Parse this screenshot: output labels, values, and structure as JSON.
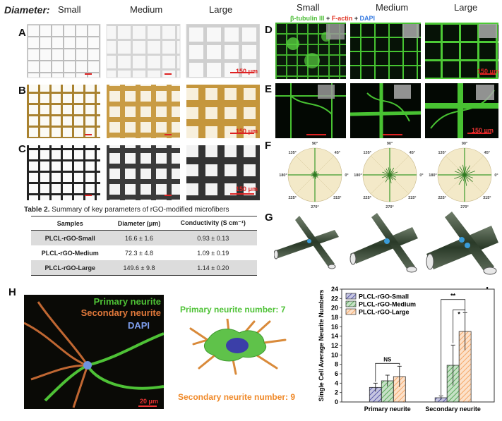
{
  "header_left": {
    "diameter_label": "Diameter:",
    "small": "Small",
    "medium": "Medium",
    "large": "Large"
  },
  "header_right": {
    "small": "Small",
    "medium": "Medium",
    "large": "Large",
    "stain_beta": "β-tubulin III",
    "plus1": " + ",
    "stain_factin": "F-actin",
    "plus2": " + ",
    "stain_dapi": "DAPI"
  },
  "panel_labels": {
    "A": "A",
    "B": "B",
    "C": "C",
    "D": "D",
    "E": "E",
    "F": "F",
    "G": "G",
    "H": "H",
    "I": "I"
  },
  "scale_bars": {
    "A": "150 μm",
    "B": "150 μm",
    "C": "150 μm",
    "D": "150 μm",
    "E": "150 μm",
    "H": "20 μm"
  },
  "table2": {
    "caption_bold": "Table 2.",
    "caption_rest": " Summary of key parameters of rGO-modified microfibers",
    "headers": [
      "Samples",
      "Diameter (μm)",
      "Conductivity (S cm⁻¹)"
    ],
    "rows": [
      [
        "PLCL-rGO-Small",
        "16.6 ± 1.6",
        "0.93 ± 0.13"
      ],
      [
        "PLCL-rGO-Medium",
        "72.3 ± 4.8",
        "1.09 ± 0.19"
      ],
      [
        "PLCL-rGO-Large",
        "149.6 ± 9.8",
        "1.14 ± 0.20"
      ]
    ]
  },
  "polar": {
    "angles": [
      "90°",
      "45°",
      "0°",
      "315°",
      "270°",
      "225°",
      "180°",
      "135°"
    ]
  },
  "panel_h": {
    "micro_primary": "Primary neurite",
    "micro_secondary": "Secondary neurite",
    "micro_dapi": "DAPI",
    "primary_number": "Primary neurite number: 7",
    "secondary_number": "Secondary neurite number: 9"
  },
  "chart_data": {
    "type": "bar",
    "categories": [
      "Primary neurite",
      "Secondary neurite"
    ],
    "ylabel": "Single Cell Average Neurite Numbers",
    "ylim": [
      0,
      24
    ],
    "yticks": [
      0,
      2,
      4,
      6,
      8,
      10,
      12,
      14,
      16,
      18,
      20,
      22,
      24
    ],
    "series": [
      {
        "name": "PLCL-rGO-Small",
        "values": [
          3.1,
          0.9
        ],
        "errors": [
          0.9,
          0.4
        ],
        "color": "#5a5aa8"
      },
      {
        "name": "PLCL-rGO-Medium",
        "values": [
          4.5,
          7.8
        ],
        "errors": [
          1.2,
          4.3
        ],
        "color": "#5aa85a"
      },
      {
        "name": "PLCL-rGO-Large",
        "values": [
          5.4,
          15.0
        ],
        "errors": [
          2.2,
          4.0
        ],
        "color": "#f5a868"
      }
    ],
    "annotations": [
      "NS",
      "**",
      "*"
    ],
    "legend": "top-left"
  },
  "colors": {
    "fiber_white": "#f5f5f5",
    "fiber_gold": "#b8903a",
    "fiber_black": "#2a2a2a",
    "green": "#4fbf3a",
    "red": "#e23a2a",
    "blue": "#3a7de2",
    "polar_bg": "#f3e9c8"
  }
}
